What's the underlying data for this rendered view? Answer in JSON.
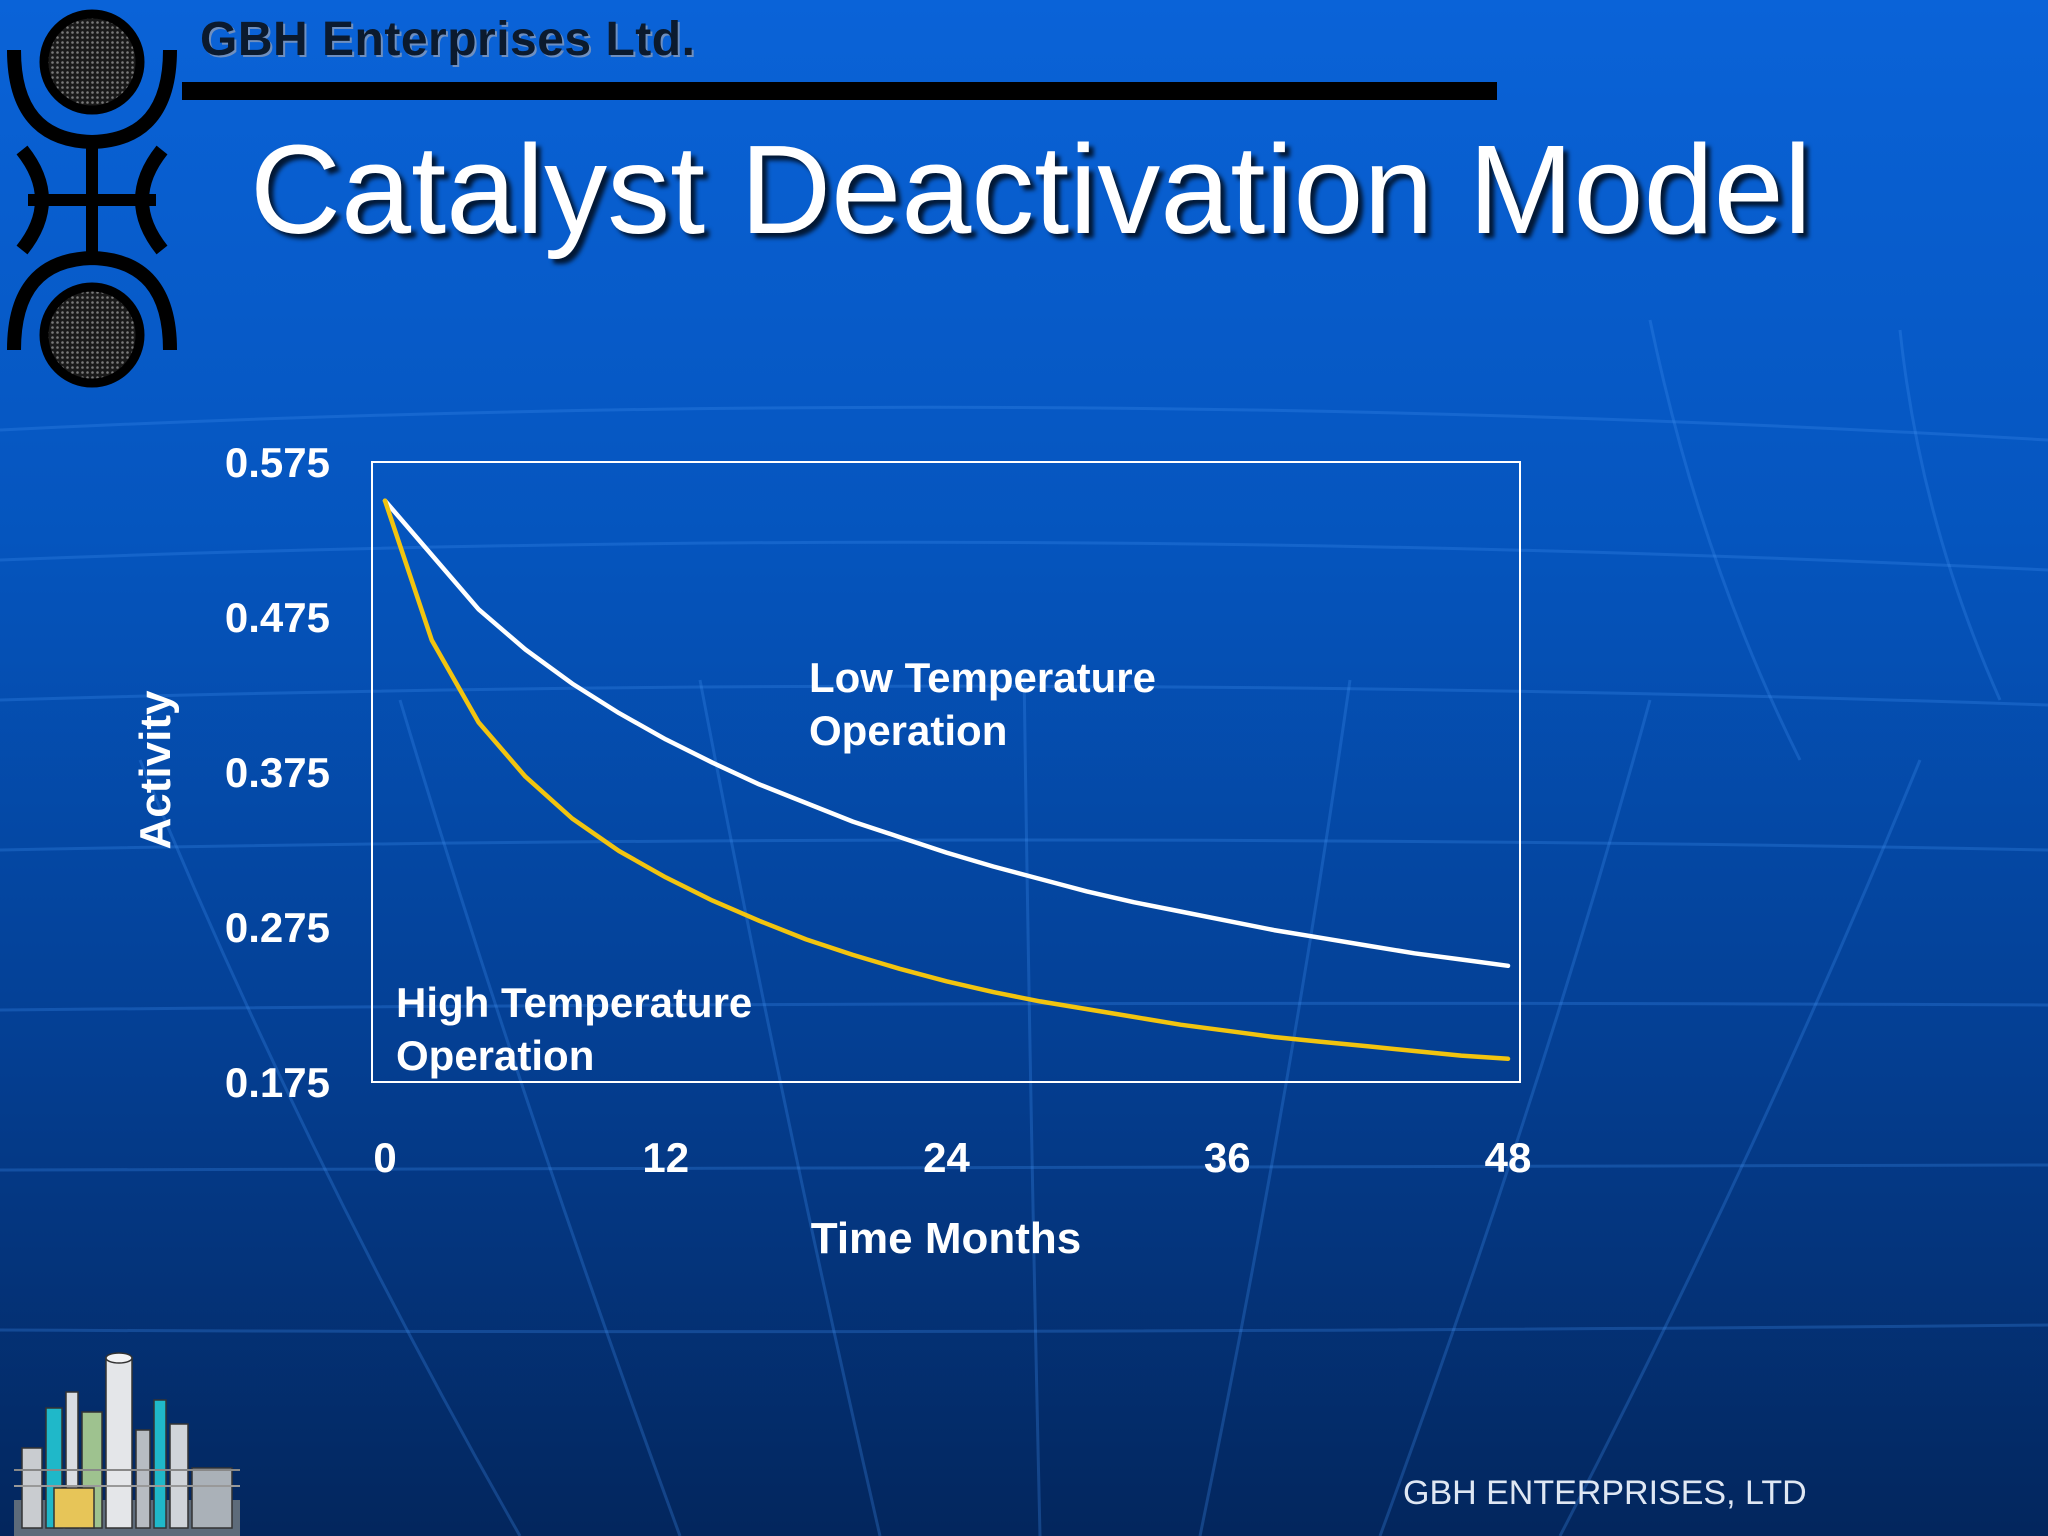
{
  "header": {
    "company": "GBH Enterprises Ltd.",
    "title": "Catalyst Deactivation Model"
  },
  "footer": {
    "company": "GBH ENTERPRISES, LTD"
  },
  "colors": {
    "background_top": "#0a63d8",
    "background_bottom": "#03265d",
    "low_temperature_line": "#ffffff",
    "high_temperature_line": "#f2c40f",
    "plot_frame": "#ffffff",
    "header_rule": "#000000"
  },
  "icons": {
    "logo": "gbh-logo-icon",
    "plant": "industrial-plant-icon"
  },
  "chart_data": {
    "type": "line",
    "title": "",
    "xlabel": "Time Months",
    "ylabel": "Activity",
    "xlim": [
      0,
      48
    ],
    "ylim": [
      0.175,
      0.575
    ],
    "x_ticks": [
      0,
      12,
      24,
      36,
      48
    ],
    "x_tick_labels": [
      "0",
      "12",
      "24",
      "36",
      "48"
    ],
    "y_ticks": [
      0.575,
      0.475,
      0.375,
      0.275,
      0.175
    ],
    "y_tick_labels": [
      "0.575",
      "0.475",
      "0.375",
      "0.275",
      "0.175"
    ],
    "grid": false,
    "legend": "none",
    "x": [
      0,
      2,
      4,
      6,
      8,
      10,
      12,
      14,
      16,
      18,
      20,
      22,
      24,
      26,
      28,
      30,
      32,
      34,
      36,
      38,
      40,
      42,
      44,
      46,
      48
    ],
    "series": [
      {
        "name": "Low Temperature Operation",
        "color": "#ffffff",
        "values": [
          0.55,
          0.515,
          0.48,
          0.454,
          0.432,
          0.413,
          0.396,
          0.381,
          0.367,
          0.355,
          0.343,
          0.333,
          0.323,
          0.314,
          0.306,
          0.298,
          0.291,
          0.285,
          0.279,
          0.273,
          0.268,
          0.263,
          0.258,
          0.254,
          0.25
        ]
      },
      {
        "name": "High Temperature Operation",
        "color": "#f2c40f",
        "values": [
          0.55,
          0.46,
          0.407,
          0.372,
          0.345,
          0.324,
          0.307,
          0.292,
          0.279,
          0.267,
          0.257,
          0.248,
          0.24,
          0.233,
          0.227,
          0.222,
          0.217,
          0.212,
          0.208,
          0.204,
          0.201,
          0.198,
          0.195,
          0.192,
          0.19
        ]
      }
    ],
    "annotations": [
      {
        "id": "low",
        "lines": [
          "Low Temperature",
          "Operation"
        ]
      },
      {
        "id": "high",
        "lines": [
          "High Temperature",
          "Operation"
        ]
      }
    ]
  }
}
